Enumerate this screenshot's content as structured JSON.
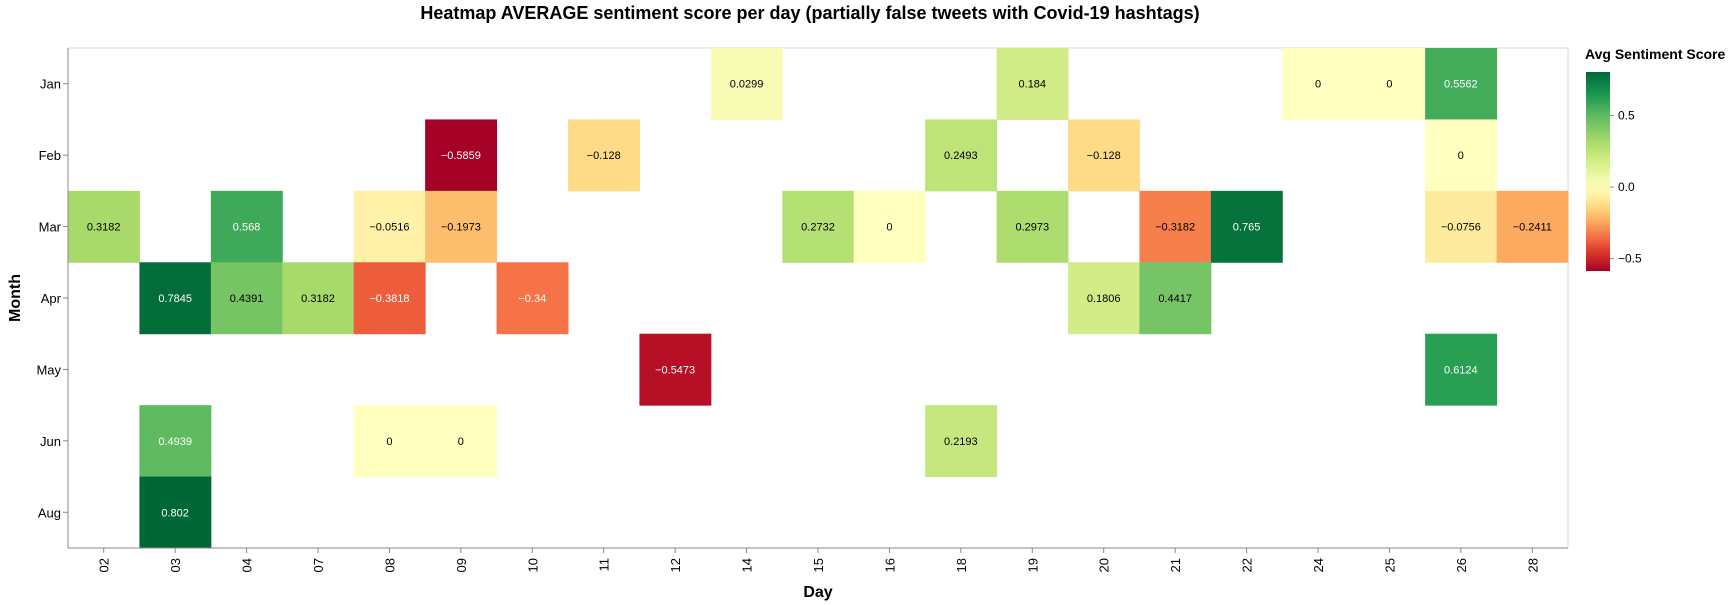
{
  "chart_data": {
    "type": "heatmap",
    "title": "Heatmap AVERAGE sentiment score per day (partially false tweets with Covid-19 hashtags)",
    "xlabel": "Day",
    "ylabel": "Month",
    "x_categories": [
      "02",
      "03",
      "04",
      "07",
      "08",
      "09",
      "10",
      "11",
      "12",
      "14",
      "15",
      "16",
      "18",
      "19",
      "20",
      "21",
      "22",
      "24",
      "25",
      "26",
      "28"
    ],
    "y_categories": [
      "Jan",
      "Feb",
      "Mar",
      "Apr",
      "May",
      "Jun",
      "Aug"
    ],
    "legend": {
      "title": "Avg Sentiment Score",
      "placement": "right",
      "ticks": [
        {
          "value": 0.5,
          "label": "0.5"
        },
        {
          "value": 0.0,
          "label": "0.0"
        },
        {
          "value": -0.5,
          "label": "−0.5"
        }
      ],
      "domain": [
        -0.5859,
        0.802
      ]
    },
    "colors": {
      "scale": "RdYlGn",
      "stops": [
        "#a50026",
        "#d73027",
        "#f46d43",
        "#fdae61",
        "#fee08b",
        "#ffffbf",
        "#d9ef8b",
        "#a6d96a",
        "#66bd63",
        "#1a9850",
        "#006837"
      ]
    },
    "cells": [
      {
        "month": "Jan",
        "day": "14",
        "value": 0.0299,
        "label": "0.0299"
      },
      {
        "month": "Jan",
        "day": "19",
        "value": 0.184,
        "label": "0.184"
      },
      {
        "month": "Jan",
        "day": "24",
        "value": 0,
        "label": "0"
      },
      {
        "month": "Jan",
        "day": "25",
        "value": 0,
        "label": "0"
      },
      {
        "month": "Jan",
        "day": "26",
        "value": 0.5562,
        "label": "0.5562"
      },
      {
        "month": "Feb",
        "day": "09",
        "value": -0.5859,
        "label": "−0.5859"
      },
      {
        "month": "Feb",
        "day": "11",
        "value": -0.128,
        "label": "−0.128"
      },
      {
        "month": "Feb",
        "day": "18",
        "value": 0.2493,
        "label": "0.2493"
      },
      {
        "month": "Feb",
        "day": "20",
        "value": -0.128,
        "label": "−0.128"
      },
      {
        "month": "Feb",
        "day": "26",
        "value": 0,
        "label": "0"
      },
      {
        "month": "Mar",
        "day": "02",
        "value": 0.3182,
        "label": "0.3182"
      },
      {
        "month": "Mar",
        "day": "04",
        "value": 0.568,
        "label": "0.568"
      },
      {
        "month": "Mar",
        "day": "08",
        "value": -0.0516,
        "label": "−0.0516"
      },
      {
        "month": "Mar",
        "day": "09",
        "value": -0.1973,
        "label": "−0.1973"
      },
      {
        "month": "Mar",
        "day": "15",
        "value": 0.2732,
        "label": "0.2732"
      },
      {
        "month": "Mar",
        "day": "16",
        "value": 0,
        "label": "0"
      },
      {
        "month": "Mar",
        "day": "19",
        "value": 0.2973,
        "label": "0.2973"
      },
      {
        "month": "Mar",
        "day": "21",
        "value": -0.3182,
        "label": "−0.3182"
      },
      {
        "month": "Mar",
        "day": "22",
        "value": 0.765,
        "label": "0.765"
      },
      {
        "month": "Mar",
        "day": "26",
        "value": -0.0756,
        "label": "−0.0756"
      },
      {
        "month": "Mar",
        "day": "28",
        "value": -0.2411,
        "label": "−0.2411"
      },
      {
        "month": "Apr",
        "day": "03",
        "value": 0.7845,
        "label": "0.7845"
      },
      {
        "month": "Apr",
        "day": "04",
        "value": 0.4391,
        "label": "0.4391"
      },
      {
        "month": "Apr",
        "day": "07",
        "value": 0.3182,
        "label": "0.3182"
      },
      {
        "month": "Apr",
        "day": "08",
        "value": -0.3818,
        "label": "−0.3818"
      },
      {
        "month": "Apr",
        "day": "10",
        "value": -0.34,
        "label": "−0.34"
      },
      {
        "month": "Apr",
        "day": "20",
        "value": 0.1806,
        "label": "0.1806"
      },
      {
        "month": "Apr",
        "day": "21",
        "value": 0.4417,
        "label": "0.4417"
      },
      {
        "month": "May",
        "day": "12",
        "value": -0.5473,
        "label": "−0.5473"
      },
      {
        "month": "May",
        "day": "26",
        "value": 0.6124,
        "label": "0.6124"
      },
      {
        "month": "Jun",
        "day": "03",
        "value": 0.4939,
        "label": "0.4939"
      },
      {
        "month": "Jun",
        "day": "08",
        "value": 0,
        "label": "0"
      },
      {
        "month": "Jun",
        "day": "09",
        "value": 0,
        "label": "0"
      },
      {
        "month": "Jun",
        "day": "18",
        "value": 0.2193,
        "label": "0.2193"
      },
      {
        "month": "Aug",
        "day": "03",
        "value": 0.802,
        "label": "0.802"
      }
    ]
  }
}
